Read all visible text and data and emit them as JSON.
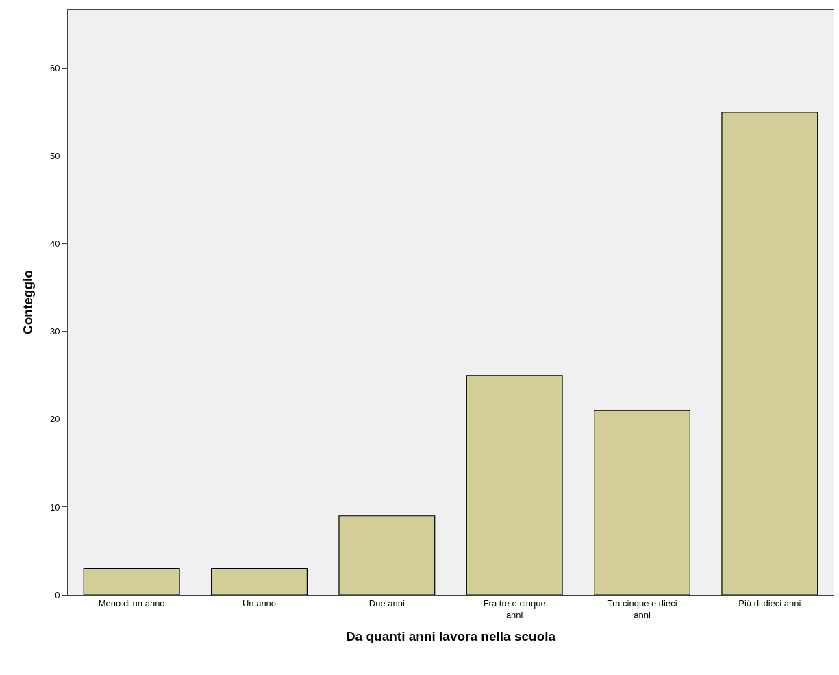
{
  "chart_data": {
    "type": "bar",
    "xlabel": "Da quanti anni lavora nella scuola",
    "ylabel": "Conteggio",
    "categories": [
      "Meno di un anno",
      "Un anno",
      "Due anni",
      "Fra tre e cinque\nanni",
      "Tra cinque e dieci\nanni",
      "Più di dieci anni"
    ],
    "values": [
      3,
      3,
      9,
      25,
      21,
      55
    ],
    "color": "#d3ce97",
    "ylim": [
      0,
      66.7
    ],
    "yticks": [
      0,
      10,
      20,
      30,
      40,
      50,
      60
    ],
    "grid": false,
    "legend": false
  }
}
